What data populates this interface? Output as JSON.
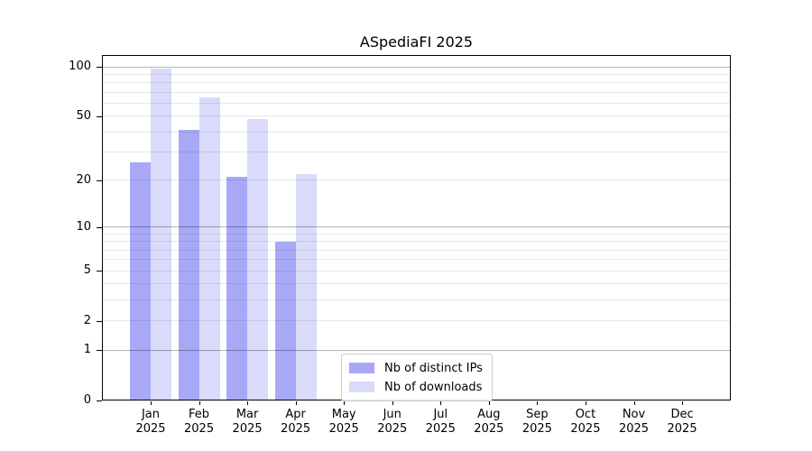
{
  "title": "ASpediaFI 2025",
  "chart_data": {
    "type": "bar",
    "title": "ASpediaFI 2025",
    "categories": [
      "Jan 2025",
      "Feb 2025",
      "Mar 2025",
      "Apr 2025",
      "May 2025",
      "Jun 2025",
      "Jul 2025",
      "Aug 2025",
      "Sep 2025",
      "Oct 2025",
      "Nov 2025",
      "Dec 2025"
    ],
    "series": [
      {
        "name": "Nb of distinct IPs",
        "color": "#a8a8f7",
        "values": [
          26,
          41,
          21,
          8,
          0,
          0,
          0,
          0,
          0,
          0,
          0,
          0
        ]
      },
      {
        "name": "Nb of downloads",
        "color": "#dadafa",
        "values": [
          97,
          65,
          48,
          22,
          0,
          0,
          0,
          0,
          0,
          0,
          0,
          0
        ]
      }
    ],
    "xlabel": "",
    "ylabel": "",
    "yscale": "log1p",
    "ylim": [
      0,
      118
    ],
    "yticks": [
      0,
      1,
      2,
      5,
      10,
      20,
      50,
      100
    ],
    "major_gridlines": [
      1,
      10,
      100
    ],
    "minor_gridlines": [
      2,
      3,
      4,
      5,
      6,
      7,
      8,
      9,
      20,
      30,
      40,
      50,
      60,
      70,
      80,
      90
    ],
    "grid": true,
    "legend_position": "lower center"
  },
  "legend": {
    "items": [
      "Nb of distinct IPs",
      "Nb of downloads"
    ]
  },
  "colors": {
    "distinct_ips": "#a8a8f7",
    "downloads": "#dadafa",
    "grid_major": "#b3b3b3",
    "grid_minor": "#eaeaea",
    "axis": "#000000",
    "legend_border": "#cccccc"
  }
}
